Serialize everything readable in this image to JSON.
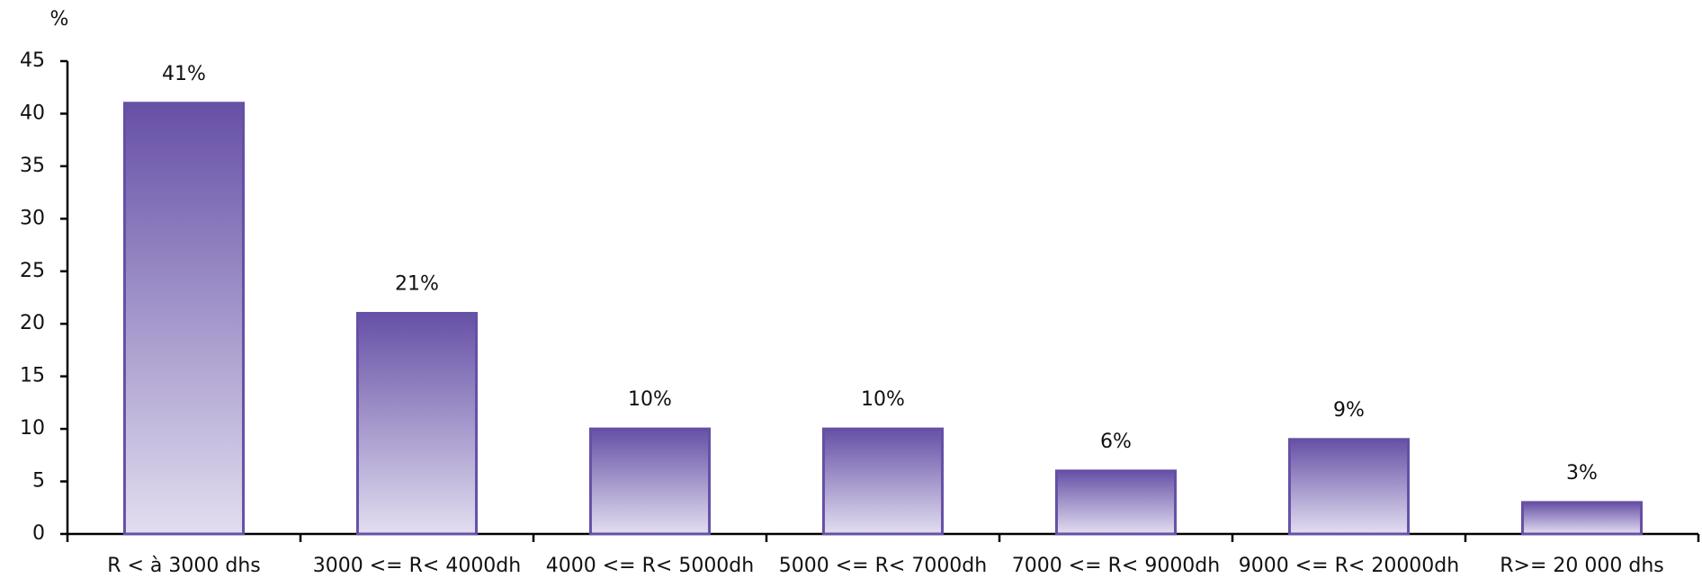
{
  "chart_data": {
    "type": "bar",
    "y_label": "%",
    "categories": [
      "R < à 3000 dhs",
      "3000 <= R< 4000dh",
      "4000 <= R< 5000dh",
      "5000 <= R< 7000dh",
      "7000 <= R< 9000dh",
      "9000 <= R< 20000dh",
      "R>= 20 000 dhs"
    ],
    "values": [
      41,
      21,
      10,
      10,
      6,
      9,
      3
    ],
    "value_labels": [
      "41%",
      "21%",
      "10%",
      "10%",
      "6%",
      "9%",
      "3%"
    ],
    "color": "#6650a6",
    "ylim": [
      0,
      45
    ],
    "yticks": [
      0,
      5,
      10,
      15,
      20,
      25,
      30,
      35,
      40,
      45
    ],
    "grid": false
  }
}
